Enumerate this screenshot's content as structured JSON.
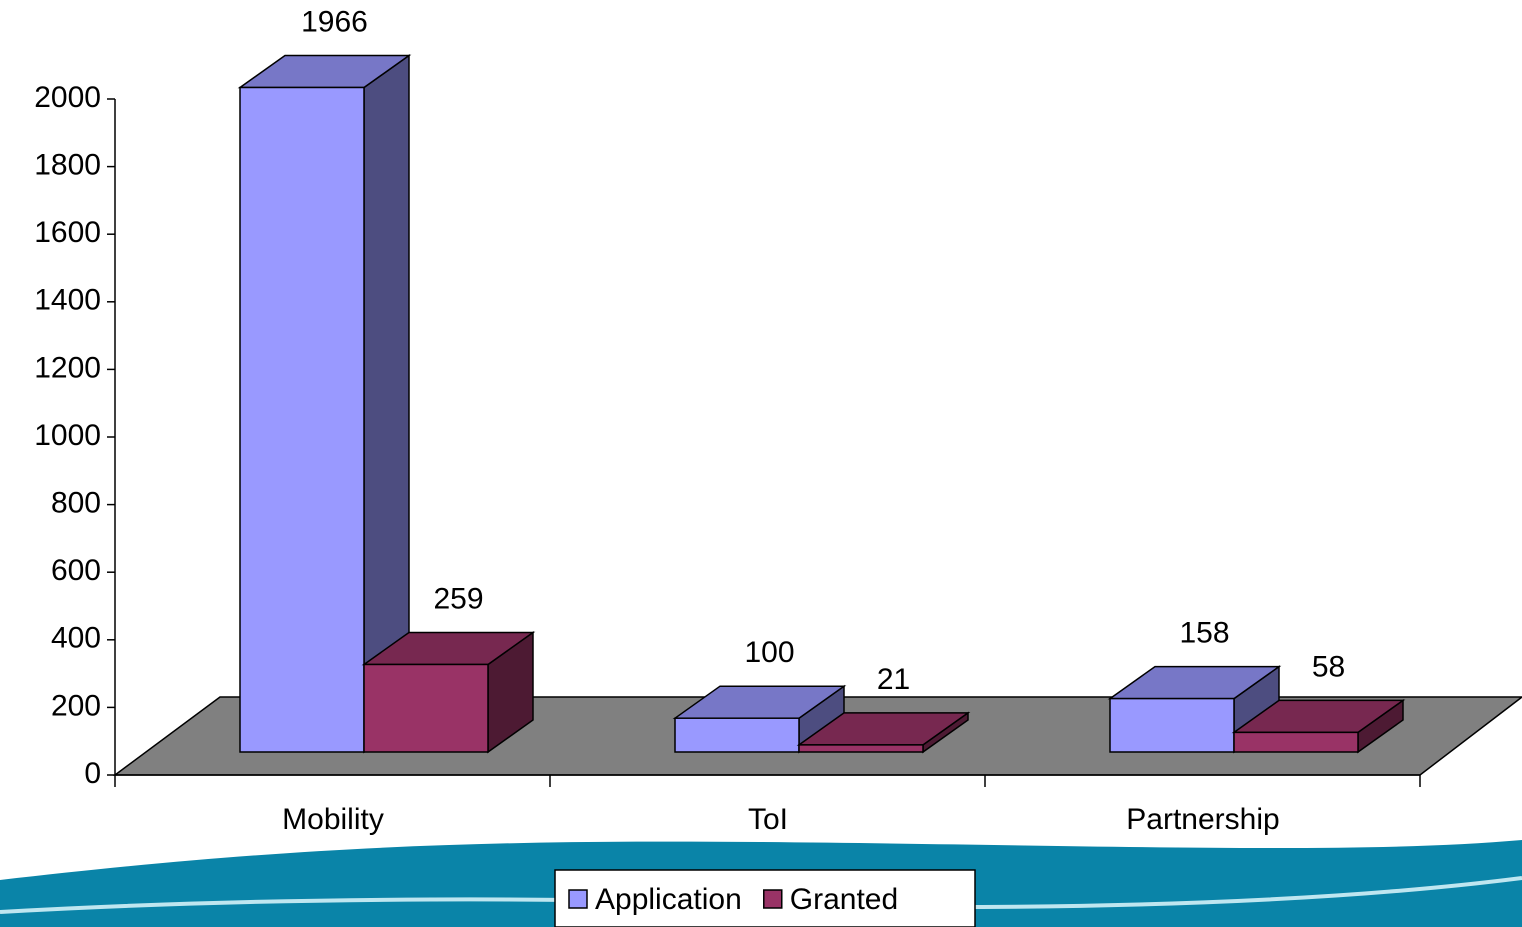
{
  "chart_data": {
    "type": "bar3d",
    "categories": [
      "Mobility",
      "ToI",
      "Partnership"
    ],
    "series": [
      {
        "name": "Application",
        "color": "#9999ff",
        "values": [
          1966,
          100,
          158
        ]
      },
      {
        "name": "Granted",
        "color": "#993366",
        "values": [
          259,
          21,
          58
        ]
      }
    ],
    "ylim": [
      0,
      2000
    ],
    "yticks": [
      0,
      200,
      400,
      600,
      800,
      1000,
      1200,
      1400,
      1600,
      1800,
      2000
    ],
    "legend": "bottom"
  }
}
